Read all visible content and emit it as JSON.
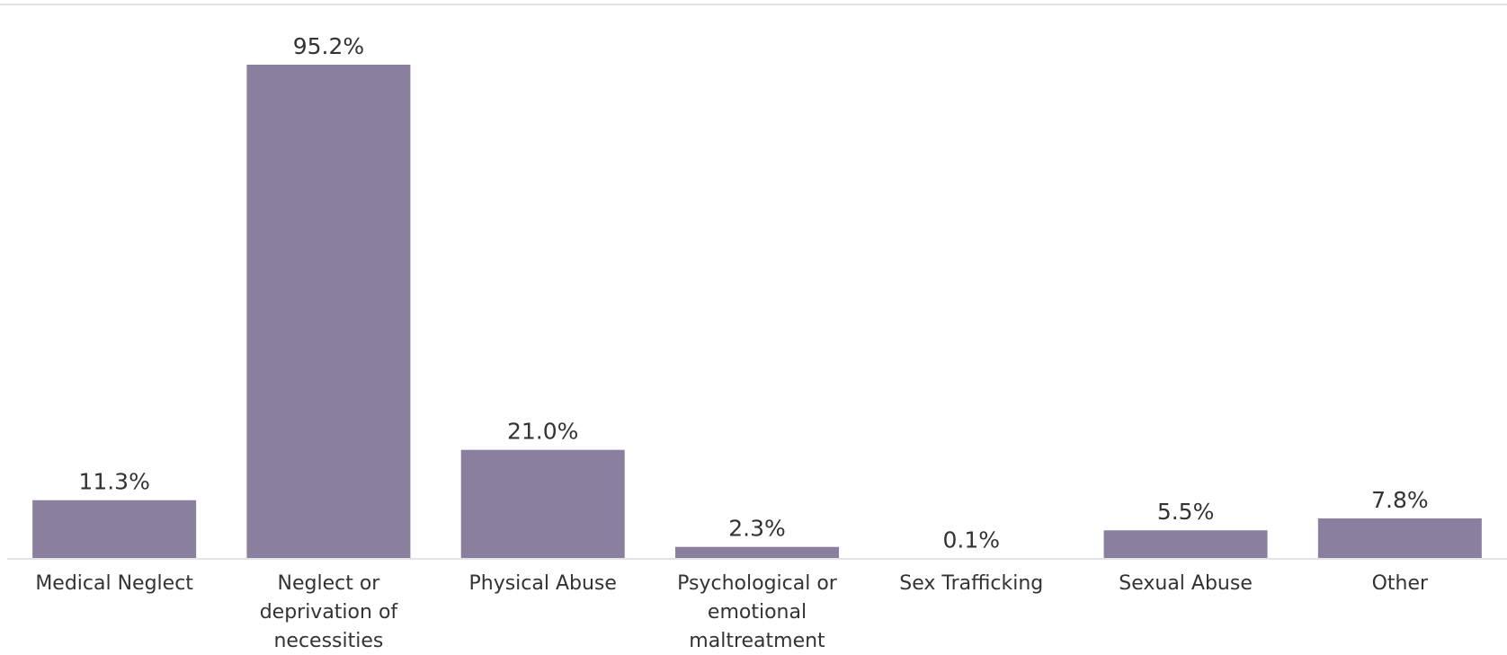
{
  "chart_data": {
    "type": "bar",
    "categories": [
      "Medical Neglect",
      "Neglect or deprivation of necessities",
      "Physical Abuse",
      "Psychological or emotional maltreatment",
      "Sex Trafficking",
      "Sexual Abuse",
      "Other"
    ],
    "category_lines": [
      [
        "Medical Neglect"
      ],
      [
        "Neglect or",
        "deprivation of",
        "necessities"
      ],
      [
        "Physical Abuse"
      ],
      [
        "Psychological or",
        "emotional",
        "maltreatment"
      ],
      [
        "Sex Trafficking"
      ],
      [
        "Sexual Abuse"
      ],
      [
        "Other"
      ]
    ],
    "values": [
      11.3,
      95.2,
      21.0,
      2.3,
      0.1,
      5.5,
      7.8
    ],
    "value_labels": [
      "11.3%",
      "95.2%",
      "21.0%",
      "2.3%",
      "0.1%",
      "5.5%",
      "7.8%"
    ],
    "title": "",
    "xlabel": "",
    "ylabel": "",
    "ylim": [
      0,
      95.2
    ],
    "grid": false,
    "legend": "none",
    "colors": {
      "bar": "#8a7f9f",
      "axis": "#e3e3e3",
      "text": "#333333"
    }
  }
}
